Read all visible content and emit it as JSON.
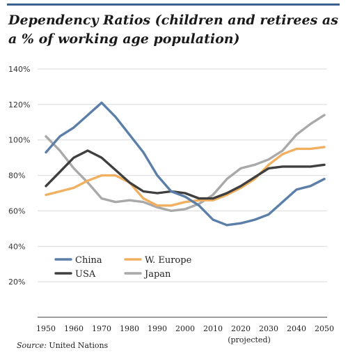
{
  "title": "Dependency Ratios (children and retirees as a % of working age population)",
  "source_label": "Source:",
  "source_text": "United Nations",
  "colors": {
    "rule": "#3a6090",
    "grid": "#d9d9d9",
    "china": "#5b7fa8",
    "w_europe": "#f0b060",
    "usa": "#3f3f3f",
    "japan": "#a9a9a9"
  },
  "chart_data": {
    "type": "line",
    "x": [
      1950,
      1955,
      1960,
      1965,
      1970,
      1975,
      1980,
      1985,
      1990,
      1995,
      2000,
      2005,
      2010,
      2015,
      2020,
      2025,
      2030,
      2035,
      2040,
      2045,
      2050
    ],
    "x_ticks": [
      1950,
      1960,
      1970,
      1980,
      1990,
      2000,
      2010,
      2020,
      2030,
      2040,
      2050
    ],
    "x_annotation": "(projected)",
    "y_ticks": [
      20,
      40,
      60,
      80,
      100,
      120,
      140
    ],
    "y_tick_labels": [
      "20%",
      "40%",
      "60%",
      "80%",
      "100%",
      "120%",
      "140%"
    ],
    "ylim": [
      0,
      140
    ],
    "xlim": [
      1950,
      2050
    ],
    "grid": true,
    "legend_position": "lower-left",
    "series": [
      {
        "name": "China",
        "color_key": "china",
        "values": [
          93,
          102,
          107,
          114,
          121,
          113,
          103,
          93,
          80,
          71,
          68,
          63,
          55,
          52,
          53,
          55,
          58,
          65,
          72,
          74,
          78
        ]
      },
      {
        "name": "W. Europe",
        "color_key": "w_europe",
        "values": [
          69,
          71,
          73,
          77,
          80,
          80,
          76,
          67,
          63,
          63,
          65,
          66,
          66,
          69,
          73,
          78,
          86,
          92,
          95,
          95,
          96
        ]
      },
      {
        "name": "USA",
        "color_key": "usa",
        "values": [
          74,
          82,
          90,
          94,
          90,
          83,
          76,
          71,
          70,
          71,
          70,
          67,
          67,
          70,
          74,
          79,
          84,
          85,
          85,
          85,
          86
        ]
      },
      {
        "name": "Japan",
        "color_key": "japan",
        "values": [
          102,
          94,
          84,
          76,
          67,
          65,
          66,
          65,
          62,
          60,
          61,
          64,
          69,
          78,
          84,
          86,
          89,
          94,
          103,
          109,
          114
        ]
      }
    ]
  }
}
